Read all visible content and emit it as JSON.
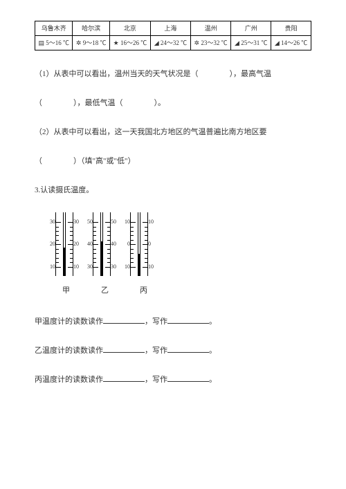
{
  "table": {
    "cities": [
      "乌鲁木齐",
      "哈尔滨",
      "北京",
      "上海",
      "温州",
      "广州",
      "贵阳"
    ],
    "temps": [
      "5～16 ℃",
      "9～18 ℃",
      "16～26 ℃",
      "24～32 ℃",
      "23～32 ℃",
      "25～31 ℃",
      "14～26 ℃"
    ],
    "icons": [
      "▤",
      "✲",
      "★",
      "◢",
      "✲",
      "◢",
      "◢"
    ]
  },
  "q1a": "（1）从表中可以看出，温州当天的天气状况是（",
  "q1b": "），最高气温",
  "q1c": "（",
  "q1d": "），最低气温（",
  "q1e": "）。",
  "q2a": "（2）从表中可以看出，这一天我国北方地区的气温普遍比南方地区要",
  "q2b": "（",
  "q2c": "）（填\"高\"或\"低\"）",
  "q3": "3.认读摄氏温度。",
  "thermos": [
    {
      "name": "甲",
      "labels": [
        "30",
        "20",
        "10"
      ],
      "mercuryPct": 45
    },
    {
      "name": "乙",
      "labels": [
        "50",
        "40",
        "30"
      ],
      "mercuryPct": 55
    },
    {
      "name": "丙",
      "labels": [
        "10",
        "0",
        "10"
      ],
      "mercuryPct": 35
    }
  ],
  "read": {
    "a1": "甲温度计的读数读作",
    "a2": "，写作",
    "a3": "。",
    "b1": "乙温度计的读数读作",
    "b2": "，写作",
    "b3": "。",
    "c1": "丙温度计的读数读作",
    "c2": "，写作",
    "c3": "。"
  }
}
